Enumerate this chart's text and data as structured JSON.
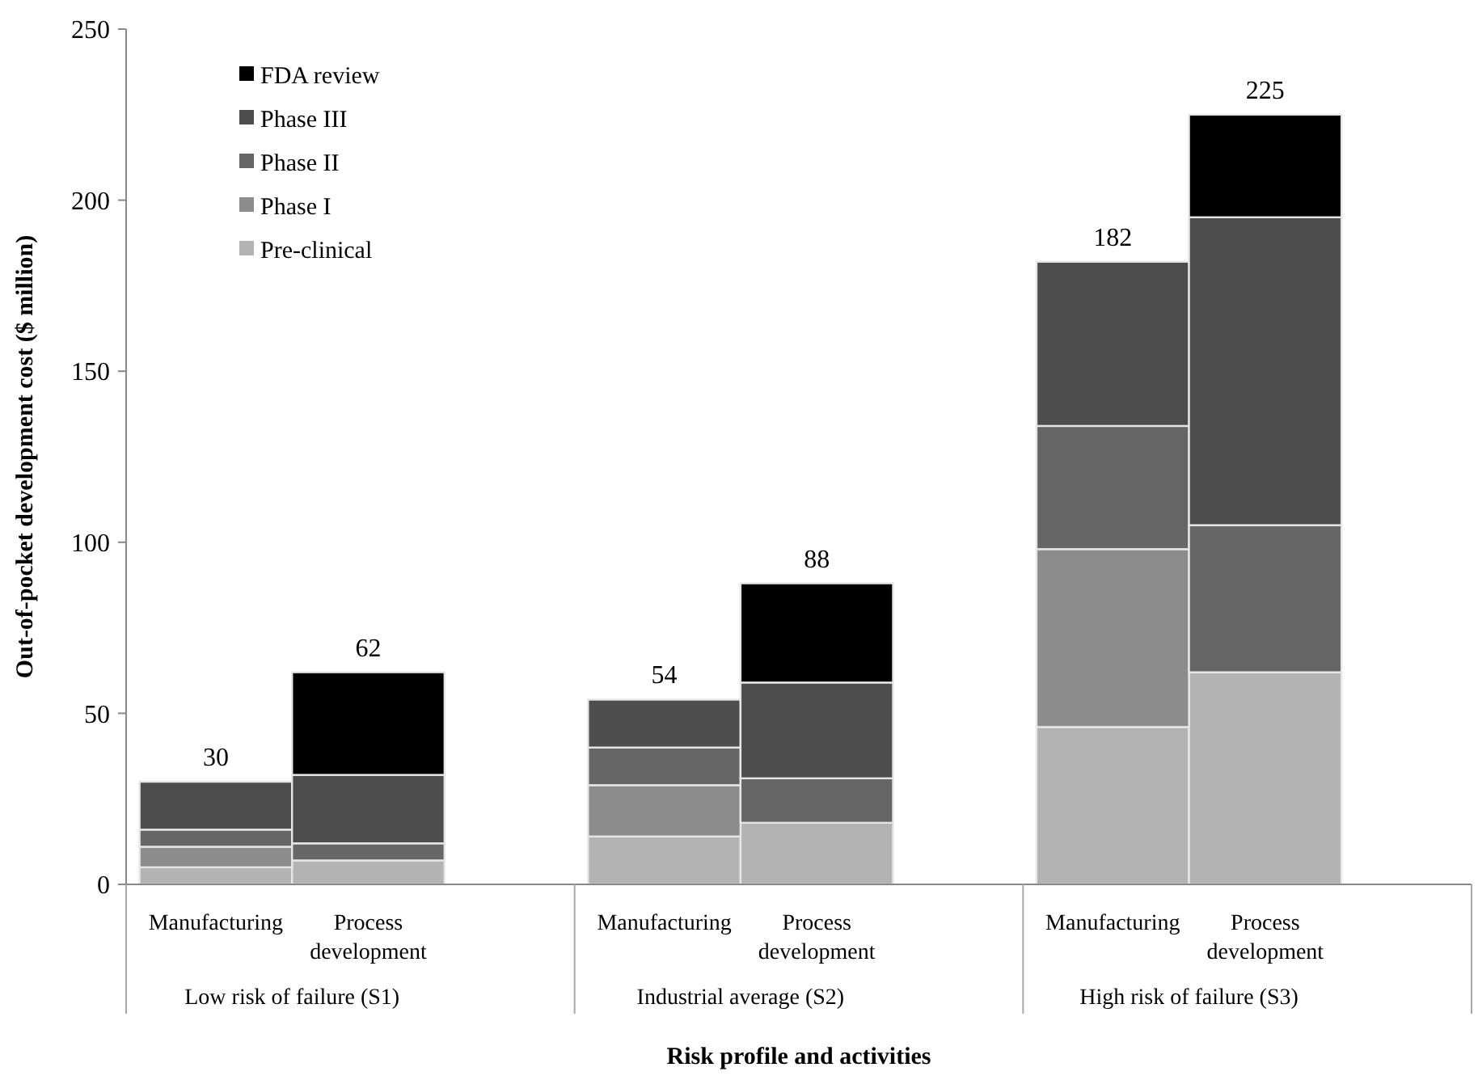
{
  "chart_data": {
    "type": "bar",
    "stacked": true,
    "xlabel": "Risk profile and activities",
    "ylabel": "Out-of-pocket development cost ($ million)",
    "categories": [
      "Manufacturing",
      "Process development",
      "Manufacturing",
      "Process development",
      "Manufacturing",
      "Process development"
    ],
    "series": [
      {
        "name": "Pre-clinical",
        "color": "#b3b3b3",
        "values": [
          5,
          7,
          14,
          18,
          46,
          62
        ]
      },
      {
        "name": "Phase I",
        "color": "#8c8c8c",
        "values": [
          6,
          0,
          15,
          0,
          52,
          0
        ]
      },
      {
        "name": "Phase II",
        "color": "#666666",
        "values": [
          5,
          5,
          11,
          13,
          36,
          43
        ]
      },
      {
        "name": "Phase III",
        "color": "#4d4d4d",
        "values": [
          14,
          20,
          14,
          28,
          48,
          90
        ]
      },
      {
        "name": "FDA review",
        "color": "#000000",
        "values": [
          0,
          30,
          0,
          29,
          0,
          30
        ]
      }
    ],
    "totals": [
      "30",
      "62",
      "54",
      "88",
      "182",
      "225"
    ],
    "annotations": [
      "Low risk of failure (S1)",
      "Industrial average (S2)",
      "High risk of failure (S3)"
    ],
    "ylim": [
      0,
      250
    ],
    "yticks": [
      0,
      50,
      100,
      150,
      200,
      250
    ],
    "legend": "top left"
  }
}
